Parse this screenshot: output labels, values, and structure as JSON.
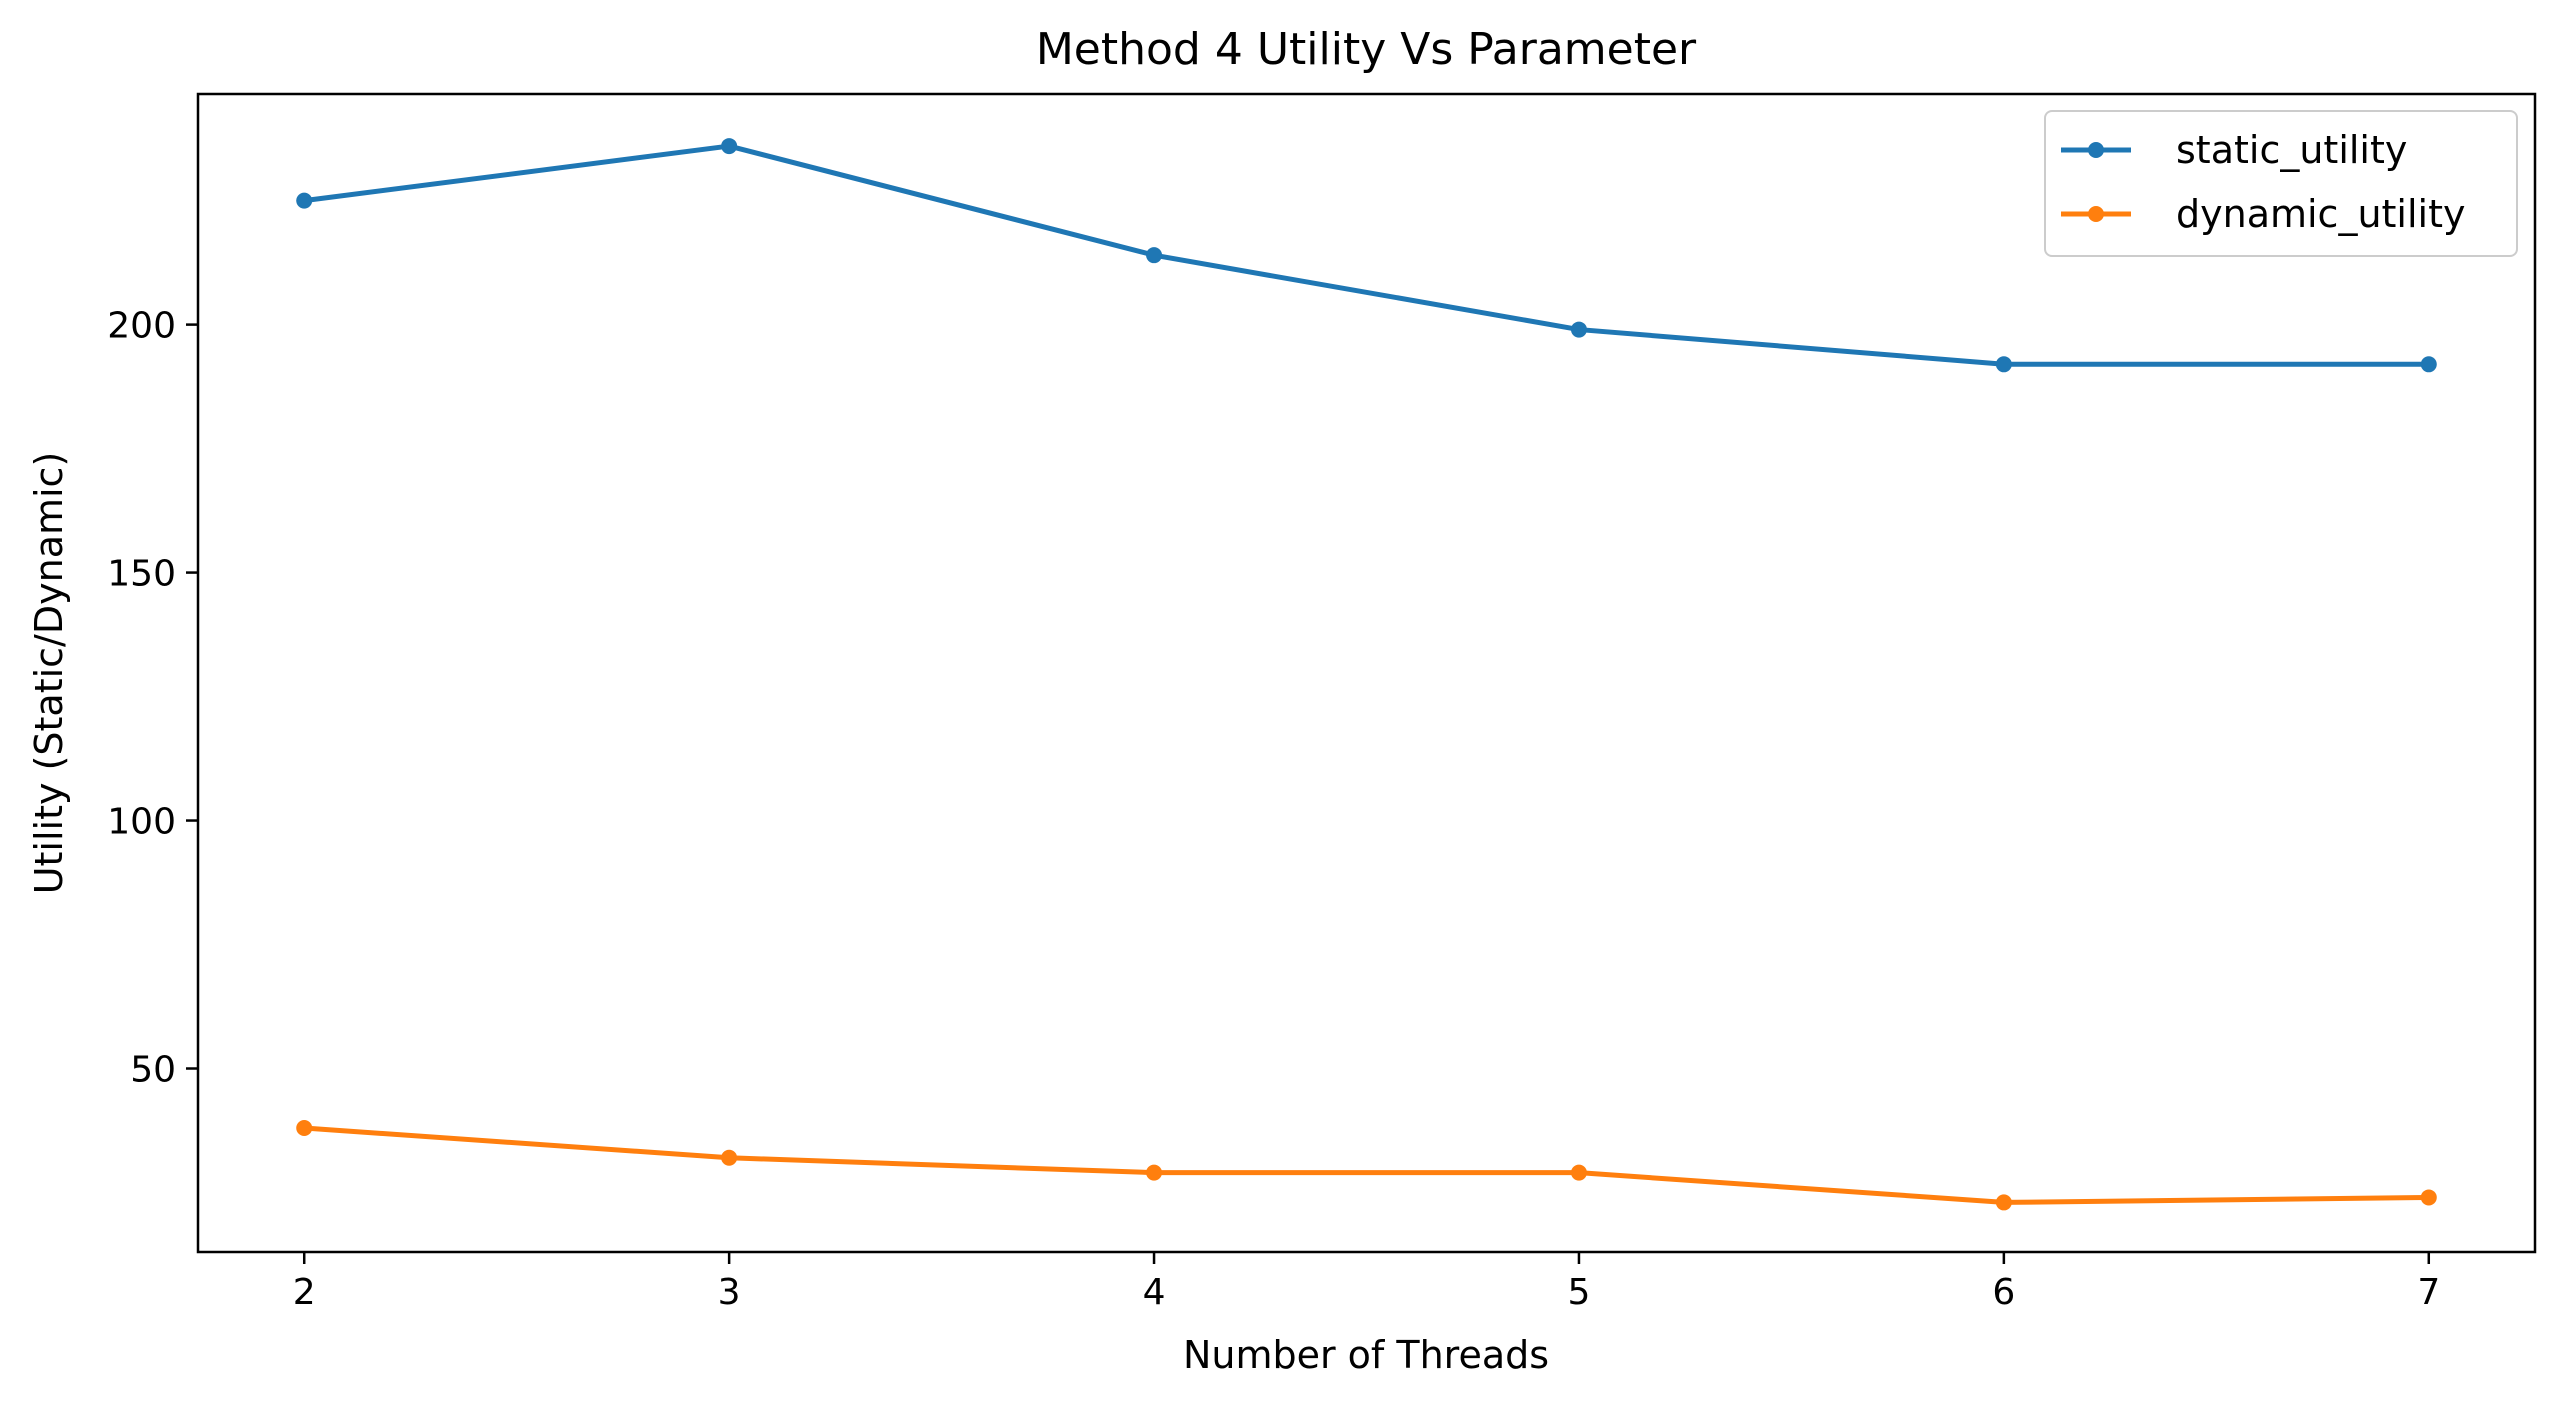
{
  "chart_data": {
    "type": "line",
    "title": "Method 4 Utility Vs Parameter",
    "xlabel": "Number of Threads",
    "ylabel": "Utility (Static/Dynamic)",
    "x": [
      2,
      3,
      4,
      5,
      6,
      7
    ],
    "series": [
      {
        "name": "static_utility",
        "color": "#1f77b4",
        "values": [
          225,
          236,
          214,
          199,
          192,
          192
        ]
      },
      {
        "name": "dynamic_utility",
        "color": "#ff7f0e",
        "values": [
          38,
          32,
          29,
          29,
          23,
          24
        ]
      }
    ],
    "xticks": [
      2,
      3,
      4,
      5,
      6,
      7
    ],
    "yticks": [
      50,
      100,
      150,
      200
    ],
    "xlim": [
      1.75,
      7.25
    ],
    "ylim": [
      13,
      246.5
    ],
    "grid": false,
    "legend": "top-right"
  }
}
